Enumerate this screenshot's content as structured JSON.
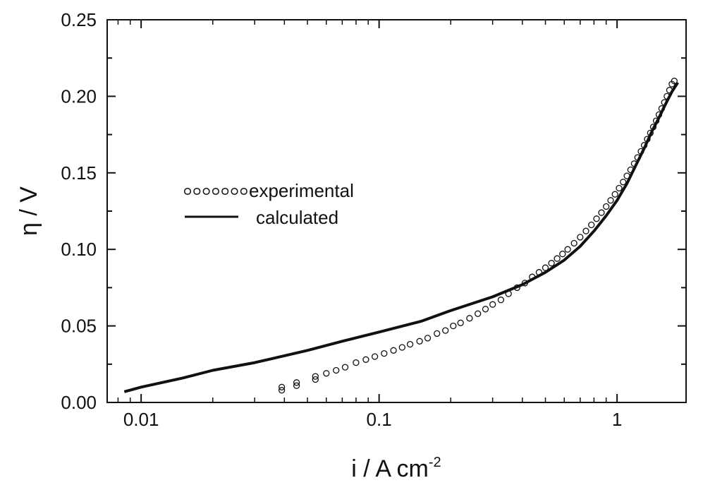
{
  "chart_data": {
    "type": "line",
    "title": "",
    "xlabel": "i / A cm",
    "xlabel_superscript": "-2",
    "ylabel": "η / V",
    "x_scale": "log",
    "xlim": [
      0.0072,
      1.95
    ],
    "ylim": [
      0,
      0.25
    ],
    "x_ticks": [
      {
        "value": 0.01,
        "label": "0.01"
      },
      {
        "value": 0.1,
        "label": "0.1"
      },
      {
        "value": 1,
        "label": "1"
      }
    ],
    "y_ticks": [
      {
        "value": 0.0,
        "label": "0.00"
      },
      {
        "value": 0.05,
        "label": "0.05"
      },
      {
        "value": 0.1,
        "label": "0.10"
      },
      {
        "value": 0.15,
        "label": "0.15"
      },
      {
        "value": 0.2,
        "label": "0.20"
      },
      {
        "value": 0.25,
        "label": "0.25"
      }
    ],
    "grid": false,
    "legend_position": "center-left",
    "series": [
      {
        "name": "experimental",
        "style": "open-circles",
        "points": [
          [
            0.039,
            0.008
          ],
          [
            0.039,
            0.01
          ],
          [
            0.045,
            0.011
          ],
          [
            0.045,
            0.013
          ],
          [
            0.054,
            0.015
          ],
          [
            0.054,
            0.017
          ],
          [
            0.06,
            0.019
          ],
          [
            0.066,
            0.021
          ],
          [
            0.072,
            0.023
          ],
          [
            0.08,
            0.026
          ],
          [
            0.088,
            0.028
          ],
          [
            0.096,
            0.03
          ],
          [
            0.105,
            0.032
          ],
          [
            0.115,
            0.034
          ],
          [
            0.125,
            0.036
          ],
          [
            0.135,
            0.038
          ],
          [
            0.148,
            0.04
          ],
          [
            0.16,
            0.042
          ],
          [
            0.175,
            0.045
          ],
          [
            0.19,
            0.047
          ],
          [
            0.205,
            0.05
          ],
          [
            0.22,
            0.052
          ],
          [
            0.24,
            0.055
          ],
          [
            0.26,
            0.058
          ],
          [
            0.28,
            0.061
          ],
          [
            0.3,
            0.064
          ],
          [
            0.325,
            0.067
          ],
          [
            0.35,
            0.071
          ],
          [
            0.38,
            0.075
          ],
          [
            0.41,
            0.078
          ],
          [
            0.44,
            0.082
          ],
          [
            0.47,
            0.085
          ],
          [
            0.5,
            0.088
          ],
          [
            0.53,
            0.091
          ],
          [
            0.56,
            0.094
          ],
          [
            0.59,
            0.097
          ],
          [
            0.62,
            0.1
          ],
          [
            0.66,
            0.104
          ],
          [
            0.7,
            0.108
          ],
          [
            0.74,
            0.112
          ],
          [
            0.78,
            0.116
          ],
          [
            0.82,
            0.12
          ],
          [
            0.86,
            0.124
          ],
          [
            0.9,
            0.128
          ],
          [
            0.94,
            0.132
          ],
          [
            0.98,
            0.136
          ],
          [
            1.02,
            0.14
          ],
          [
            1.06,
            0.144
          ],
          [
            1.1,
            0.148
          ],
          [
            1.14,
            0.152
          ],
          [
            1.18,
            0.156
          ],
          [
            1.22,
            0.16
          ],
          [
            1.26,
            0.164
          ],
          [
            1.3,
            0.168
          ],
          [
            1.34,
            0.172
          ],
          [
            1.38,
            0.176
          ],
          [
            1.42,
            0.18
          ],
          [
            1.46,
            0.184
          ],
          [
            1.5,
            0.188
          ],
          [
            1.54,
            0.192
          ],
          [
            1.58,
            0.196
          ],
          [
            1.62,
            0.2
          ],
          [
            1.66,
            0.204
          ],
          [
            1.7,
            0.208
          ],
          [
            1.74,
            0.21
          ]
        ]
      },
      {
        "name": "calculated",
        "style": "solid-line",
        "points": [
          [
            0.0085,
            0.007
          ],
          [
            0.01,
            0.01
          ],
          [
            0.015,
            0.016
          ],
          [
            0.02,
            0.021
          ],
          [
            0.03,
            0.026
          ],
          [
            0.05,
            0.034
          ],
          [
            0.07,
            0.04
          ],
          [
            0.1,
            0.046
          ],
          [
            0.15,
            0.053
          ],
          [
            0.2,
            0.06
          ],
          [
            0.3,
            0.069
          ],
          [
            0.4,
            0.077
          ],
          [
            0.5,
            0.085
          ],
          [
            0.6,
            0.093
          ],
          [
            0.7,
            0.102
          ],
          [
            0.8,
            0.112
          ],
          [
            0.9,
            0.122
          ],
          [
            1.0,
            0.132
          ],
          [
            1.1,
            0.143
          ],
          [
            1.2,
            0.155
          ],
          [
            1.3,
            0.166
          ],
          [
            1.4,
            0.177
          ],
          [
            1.5,
            0.186
          ],
          [
            1.6,
            0.195
          ],
          [
            1.7,
            0.203
          ],
          [
            1.8,
            0.209
          ]
        ]
      }
    ]
  }
}
